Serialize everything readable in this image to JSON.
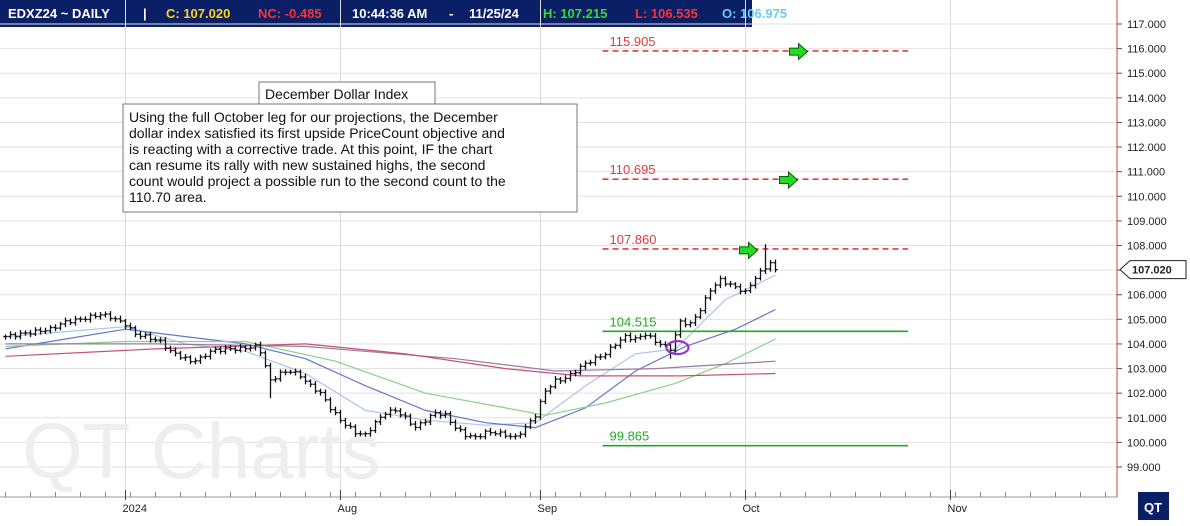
{
  "header": {
    "symbol": "EDXZ24 ~ DAILY",
    "separator": "|",
    "close": "C: 107.020",
    "net_change": "NC: -0.485",
    "time": "10:44:36 AM",
    "dash": "-",
    "date": "11/25/24",
    "high": "H: 107.215",
    "low": "L: 106.535",
    "open": "O: 106.975"
  },
  "watermark": "QT Charts",
  "logo_text": "QT",
  "colors": {
    "header_bg": "#0b1f66",
    "close": "#ffd21a",
    "net_change": "#ff3030",
    "white": "#ffffff",
    "high": "#33dd33",
    "low": "#ff3030",
    "open": "#66ccff",
    "target": "#e23b3b",
    "support": "#22aa22",
    "arrow": "#22dd22",
    "ma_fast": "#a9c6e8",
    "ma_mid": "#6677cc",
    "ma_slow": "#8ad08a",
    "ma_long": "#c85070",
    "ma_long2": "#9a7aa0",
    "circle": "#9933cc"
  },
  "chart_data": {
    "type": "line",
    "price_axis": {
      "ylim": [
        98.6,
        117.5
      ],
      "ticks": [
        "99.000",
        "100.000",
        "101.000",
        "102.000",
        "103.000",
        "104.000",
        "105.000",
        "106.000",
        "107.000",
        "108.000",
        "109.000",
        "110.000",
        "111.000",
        "112.000",
        "113.000",
        "114.000",
        "115.000",
        "116.000",
        "117.000"
      ],
      "last_price_label": "107.020",
      "last_price": 107.02
    },
    "time_axis": {
      "months": [
        "2024",
        "Aug",
        "Sep",
        "Oct",
        "Nov"
      ],
      "bar_count": 145,
      "month_bar_index": [
        24,
        67,
        107,
        148,
        189
      ],
      "month_label_colors": [
        "#cc2222",
        "#222222",
        "#222222",
        "#222222",
        "#222222"
      ]
    },
    "annotation": {
      "title": "December Dollar Index",
      "lines": [
        "Using the full October leg for our projections, the December",
        "dollar index satisfied its first upside PriceCount objective and",
        "is reacting with a corrective trade.  At this point, IF the chart",
        "can resume its rally with new sustained highs, the second",
        "count would project a possible run to the second count to the",
        "110.70 area."
      ]
    },
    "levels": [
      {
        "label": "115.905",
        "value": 115.905,
        "style": "dashed",
        "kind": "target",
        "start_bar": 120
      },
      {
        "label": "110.695",
        "value": 110.695,
        "style": "dashed",
        "kind": "target",
        "start_bar": 120
      },
      {
        "label": "107.860",
        "value": 107.86,
        "style": "dashed",
        "kind": "target",
        "start_bar": 120
      },
      {
        "label": "104.515",
        "value": 104.515,
        "style": "solid",
        "kind": "support",
        "start_bar": 120
      },
      {
        "label": "99.865",
        "value": 99.865,
        "style": "solid",
        "kind": "support",
        "start_bar": 120
      }
    ],
    "target_arrows": [
      {
        "value": 115.88,
        "bar": 154
      },
      {
        "value": 110.66,
        "bar": 152
      },
      {
        "value": 107.8,
        "bar": 144
      }
    ],
    "circle_marker": {
      "bar": 134,
      "value": 103.85
    },
    "price_keypoints": [
      [
        0,
        104.3
      ],
      [
        3,
        104.4
      ],
      [
        6,
        104.5
      ],
      [
        9,
        104.6
      ],
      [
        12,
        104.9
      ],
      [
        15,
        105.0
      ],
      [
        19,
        105.2
      ],
      [
        21,
        105.1
      ],
      [
        24,
        104.8
      ],
      [
        26,
        104.4
      ],
      [
        28,
        104.3
      ],
      [
        31,
        104.1
      ],
      [
        33,
        103.7
      ],
      [
        35,
        103.5
      ],
      [
        37,
        103.3
      ],
      [
        39,
        103.4
      ],
      [
        41,
        103.7
      ],
      [
        44,
        103.8
      ],
      [
        47,
        103.8
      ],
      [
        50,
        103.9
      ],
      [
        51,
        103.7
      ],
      [
        53,
        102.5
      ],
      [
        55,
        102.8
      ],
      [
        57,
        102.9
      ],
      [
        59,
        102.7
      ],
      [
        61,
        102.3
      ],
      [
        63,
        102.0
      ],
      [
        65,
        101.4
      ],
      [
        67,
        100.9
      ],
      [
        70,
        100.4
      ],
      [
        72,
        100.3
      ],
      [
        74,
        100.8
      ],
      [
        76,
        101.2
      ],
      [
        78,
        101.3
      ],
      [
        80,
        101.0
      ],
      [
        82,
        100.6
      ],
      [
        84,
        100.9
      ],
      [
        86,
        101.2
      ],
      [
        88,
        101.1
      ],
      [
        90,
        100.6
      ],
      [
        92,
        100.3
      ],
      [
        94,
        100.2
      ],
      [
        96,
        100.4
      ],
      [
        98,
        100.4
      ],
      [
        100,
        100.3
      ],
      [
        102,
        100.2
      ],
      [
        104,
        100.6
      ],
      [
        106,
        101.1
      ],
      [
        108,
        102.1
      ],
      [
        110,
        102.5
      ],
      [
        112,
        102.6
      ],
      [
        114,
        102.9
      ],
      [
        116,
        103.2
      ],
      [
        118,
        103.4
      ],
      [
        120,
        103.6
      ],
      [
        122,
        104.0
      ],
      [
        124,
        104.3
      ],
      [
        126,
        104.2
      ],
      [
        128,
        104.4
      ],
      [
        130,
        104.1
      ],
      [
        132,
        103.9
      ],
      [
        133,
        103.8
      ],
      [
        135,
        104.9
      ],
      [
        137,
        104.8
      ],
      [
        139,
        105.4
      ],
      [
        141,
        106.2
      ],
      [
        143,
        106.6
      ],
      [
        144,
        106.5
      ],
      [
        146,
        106.3
      ],
      [
        148,
        106.1
      ],
      [
        150,
        106.7
      ],
      [
        152,
        107.1
      ],
      [
        153,
        107.3
      ],
      [
        154,
        107.1
      ]
    ],
    "moving_averages": [
      {
        "kind": "fast",
        "points": [
          [
            0,
            104.3
          ],
          [
            12,
            104.5
          ],
          [
            24,
            104.7
          ],
          [
            36,
            104.0
          ],
          [
            48,
            103.7
          ],
          [
            60,
            102.8
          ],
          [
            72,
            101.3
          ],
          [
            84,
            100.9
          ],
          [
            96,
            100.7
          ],
          [
            106,
            100.8
          ],
          [
            116,
            102.3
          ],
          [
            126,
            103.6
          ],
          [
            134,
            103.8
          ],
          [
            144,
            105.8
          ],
          [
            154,
            106.8
          ]
        ]
      },
      {
        "kind": "mid",
        "points": [
          [
            0,
            103.8
          ],
          [
            12,
            104.2
          ],
          [
            24,
            104.6
          ],
          [
            36,
            104.3
          ],
          [
            48,
            104.0
          ],
          [
            60,
            103.4
          ],
          [
            72,
            102.3
          ],
          [
            84,
            101.3
          ],
          [
            96,
            100.8
          ],
          [
            106,
            100.6
          ],
          [
            116,
            101.4
          ],
          [
            126,
            102.9
          ],
          [
            136,
            103.9
          ],
          [
            146,
            104.6
          ],
          [
            154,
            105.4
          ]
        ]
      },
      {
        "kind": "slow",
        "points": [
          [
            0,
            103.9
          ],
          [
            24,
            104.1
          ],
          [
            48,
            104.1
          ],
          [
            66,
            103.3
          ],
          [
            84,
            102.0
          ],
          [
            100,
            101.4
          ],
          [
            108,
            101.1
          ],
          [
            120,
            101.6
          ],
          [
            134,
            102.4
          ],
          [
            144,
            103.2
          ],
          [
            154,
            104.2
          ]
        ]
      },
      {
        "kind": "long2",
        "points": [
          [
            0,
            104.0
          ],
          [
            30,
            104.0
          ],
          [
            60,
            103.9
          ],
          [
            90,
            103.4
          ],
          [
            110,
            102.9
          ],
          [
            130,
            103.0
          ],
          [
            154,
            103.3
          ]
        ]
      },
      {
        "kind": "long",
        "points": [
          [
            0,
            103.5
          ],
          [
            30,
            103.8
          ],
          [
            60,
            104.0
          ],
          [
            80,
            103.6
          ],
          [
            100,
            103.0
          ],
          [
            115,
            102.7
          ],
          [
            135,
            102.7
          ],
          [
            154,
            102.8
          ]
        ]
      }
    ]
  }
}
